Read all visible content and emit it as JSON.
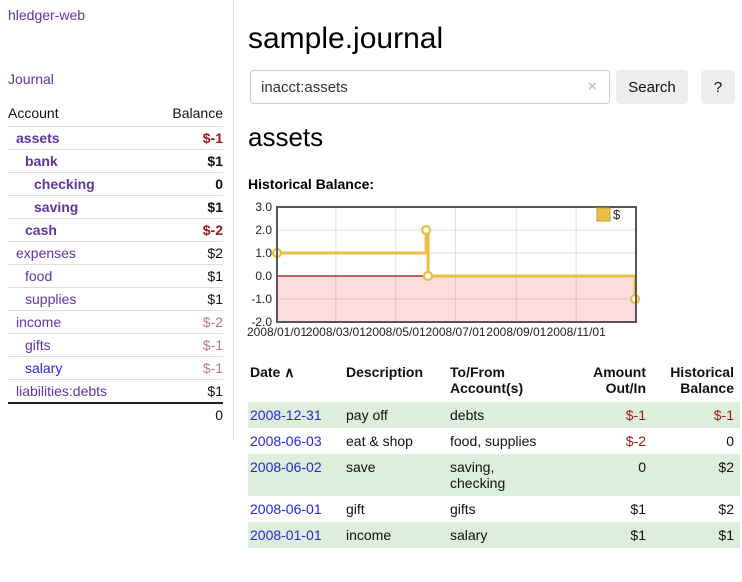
{
  "colors": {
    "purple_link": "#5e35a1",
    "blue_link": "#2626d8",
    "negative_strong": "#9e1616",
    "negative_soft": "#c47777",
    "row_stripe_green": "#ddeedd",
    "chart_line_gold": "#e9c046",
    "chart_negative_region": "#fcdcdc",
    "chart_zero_line": "#8b1414"
  },
  "sidebar": {
    "app_title": "hledger-web",
    "journal_link": "Journal",
    "table": {
      "headers": {
        "account": "Account",
        "balance": "Balance"
      },
      "rows": [
        {
          "account": "assets",
          "balance": "$-1"
        },
        {
          "account": "bank",
          "balance": "$1"
        },
        {
          "account": "checking",
          "balance": "0"
        },
        {
          "account": "saving",
          "balance": "$1"
        },
        {
          "account": "cash",
          "balance": "$-2"
        },
        {
          "account": "expenses",
          "balance": "$2"
        },
        {
          "account": "food",
          "balance": "$1"
        },
        {
          "account": "supplies",
          "balance": "$1"
        },
        {
          "account": "income",
          "balance": "$-2"
        },
        {
          "account": "gifts",
          "balance": "$-1"
        },
        {
          "account": "salary",
          "balance": "$-1"
        },
        {
          "account": "liabilities:debts",
          "balance": "$1"
        }
      ],
      "total": "0"
    }
  },
  "main": {
    "page_title": "sample.journal",
    "search": {
      "value": "inacct:assets",
      "clear_icon": "×",
      "search_button": "Search",
      "help_button": "?"
    },
    "account_heading": "assets",
    "chart_label": "Historical Balance:",
    "register": {
      "headers": {
        "date": "Date",
        "sort_icon": "∧",
        "description": "Description",
        "accounts": "To/From\nAccount(s)",
        "amount": "Amount\nOut/In",
        "balance": "Historical\nBalance"
      },
      "rows": [
        {
          "date": "2008-12-31",
          "description": "pay off",
          "accounts": "debts",
          "amount": "$-1",
          "balance": "$-1"
        },
        {
          "date": "2008-06-03",
          "description": "eat & shop",
          "accounts": "food, supplies",
          "amount": "$-2",
          "balance": "0"
        },
        {
          "date": "2008-06-02",
          "description": "save",
          "accounts": "saving,\nchecking",
          "amount": "0",
          "balance": "$2"
        },
        {
          "date": "2008-06-01",
          "description": "gift",
          "accounts": "gifts",
          "amount": "$1",
          "balance": "$2"
        },
        {
          "date": "2008-01-01",
          "description": "income",
          "accounts": "salary",
          "amount": "$1",
          "balance": "$1"
        }
      ]
    }
  },
  "chart_data": {
    "type": "line",
    "title": "Historical Balance:",
    "step": true,
    "series": [
      {
        "name": "$",
        "color": "#e9c046",
        "points": [
          {
            "date": "2008-01-01",
            "value": 1.0
          },
          {
            "date": "2008-06-01",
            "value": 2.0
          },
          {
            "date": "2008-06-03",
            "value": 0.0
          },
          {
            "date": "2008-12-31",
            "value": -1.0
          }
        ]
      }
    ],
    "x_range": [
      "2008-01-01",
      "2009-01-01"
    ],
    "x_tick_labels": [
      "2008/01/01",
      "2008/03/01",
      "2008/05/01",
      "2008/07/01",
      "2008/09/01",
      "2008/11/01"
    ],
    "y_ticks": [
      3.0,
      2.0,
      1.0,
      0.0,
      -1.0,
      -2.0
    ],
    "ylim": [
      -2.0,
      3.0
    ],
    "grid": true,
    "legend_position": "top-right",
    "negative_region_below": 0
  }
}
